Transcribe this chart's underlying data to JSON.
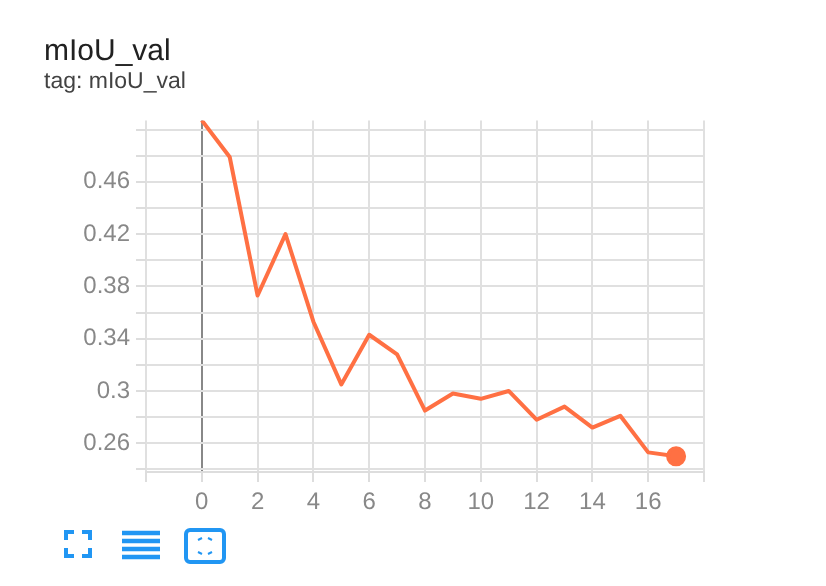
{
  "chart_data": {
    "type": "line",
    "title": "mIoU_val",
    "subtitle": "tag: mIoU_val",
    "x": [
      0,
      1,
      2,
      3,
      4,
      5,
      6,
      7,
      8,
      9,
      10,
      11,
      12,
      13,
      14,
      15,
      16,
      17
    ],
    "series": [
      {
        "color": "#ff7043",
        "values": [
          0.507,
          0.479,
          0.373,
          0.42,
          0.353,
          0.305,
          0.343,
          0.328,
          0.285,
          0.298,
          0.294,
          0.3,
          0.278,
          0.288,
          0.272,
          0.281,
          0.253,
          0.25
        ]
      }
    ],
    "xlim": [
      -2,
      18
    ],
    "xticks": [
      {
        "value": -2,
        "label": null
      },
      0,
      2,
      4,
      6,
      8,
      10,
      12,
      14,
      16,
      {
        "value": 18,
        "label": null
      }
    ],
    "ylim": [
      0.238,
      0.507
    ],
    "yticks": [
      {
        "value": 0.24,
        "label": null
      },
      0.26,
      {
        "value": 0.28,
        "label": null
      },
      0.3,
      {
        "value": 0.32,
        "label": null
      },
      0.34,
      {
        "value": 0.36,
        "label": null
      },
      0.38,
      {
        "value": 0.4,
        "label": null
      },
      0.42,
      {
        "value": 0.44,
        "label": null
      },
      0.46,
      {
        "value": 0.48,
        "label": null
      },
      {
        "value": 0.5,
        "label": null
      }
    ],
    "grid": true,
    "legend": false,
    "line_style": "solid"
  }
}
